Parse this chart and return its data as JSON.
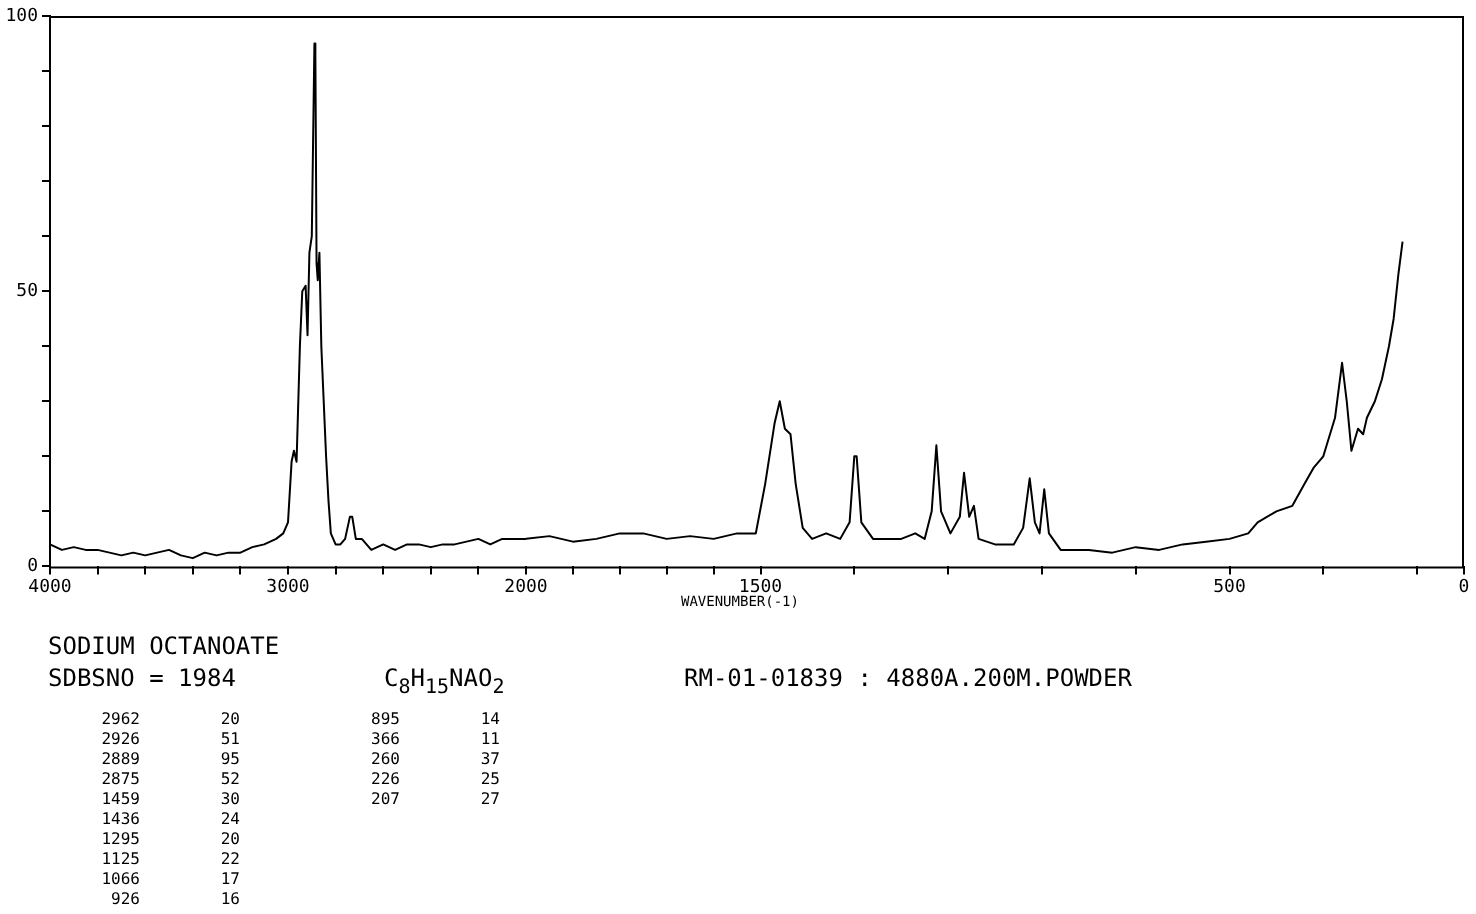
{
  "chart_data": [
    {
      "type": "line",
      "title": "SODIUM OCTANOATE",
      "annotations": [
        "SDBSNO = 1984",
        "C$_{8}$H$_{15}$NAO$_{2}$",
        "RM-01-01839 : 4880A.200M.POWDER",
        "2962 20",
        "2926 51",
        "2889 95",
        "2875 52",
        "1459 30",
        "1436 24",
        "1295 20",
        "1125 22",
        "1066 17",
        " 926 16",
        " 895 14",
        " 366 11",
        " 260 37",
        " 226 25",
        " 207 27"
      ],
      "xlim": [
        4000,
        2000
      ],
      "xticks": [
        4000,
        {
          "value": 3800,
          "label": null
        },
        {
          "value": 3600,
          "label": null
        },
        {
          "value": 3400,
          "label": null
        },
        {
          "value": 3200,
          "label": null
        },
        3000,
        {
          "value": 2800,
          "label": null
        },
        {
          "value": 2600,
          "label": null
        },
        {
          "value": 2400,
          "label": null
        },
        {
          "value": 2200,
          "label": null
        },
        2000
      ],
      "ylim": [
        0,
        100
      ],
      "yticks": [
        0,
        {
          "value": 10,
          "label": null
        },
        {
          "value": 20,
          "label": null
        },
        {
          "value": 30,
          "label": null
        },
        {
          "value": 40,
          "label": null
        },
        50,
        {
          "value": 60,
          "label": null
        },
        {
          "value": 70,
          "label": null
        },
        {
          "value": 80,
          "label": null
        },
        {
          "value": 90,
          "label": null
        },
        100
      ],
      "series": [
        {
          "color": "#000000",
          "x": [
            4000,
            3950,
            3900,
            3850,
            3800,
            3750,
            3700,
            3650,
            3600,
            3550,
            3500,
            3450,
            3400,
            3350,
            3300,
            3250,
            3200,
            3150,
            3100,
            3050,
            3020,
            3000,
            2985,
            2975,
            2964,
            2950,
            2940,
            2926,
            2918,
            2910,
            2900,
            2889,
            2885,
            2880,
            2875,
            2868,
            2860,
            2850,
            2840,
            2830,
            2820,
            2800,
            2780,
            2760,
            2740,
            2730,
            2715,
            2690,
            2650,
            2600,
            2550,
            2500,
            2450,
            2400,
            2350,
            2300,
            2250,
            2200,
            2150,
            2100,
            2050,
            2000
          ],
          "values": [
            4,
            3,
            3.5,
            3,
            3,
            2.5,
            2,
            2.5,
            2,
            2.5,
            3,
            2,
            1.5,
            2.5,
            2,
            2.5,
            2.5,
            3.5,
            4,
            5,
            6,
            8,
            19,
            21,
            19,
            40,
            50,
            51,
            42,
            57,
            60,
            95,
            93,
            55,
            52,
            57,
            40,
            30,
            20,
            12,
            6,
            4,
            4,
            5,
            9,
            9,
            5,
            5,
            3,
            4,
            3,
            4,
            4,
            3.5,
            4,
            4,
            4.5,
            5,
            4,
            5,
            5,
            5
          ]
        }
      ]
    },
    {
      "type": "line",
      "xlabel": "WAVENUMBER(-1)",
      "tick_labels": "x",
      "xlim": [
        2000,
        0
      ],
      "xticks": [
        {
          "value": 1900,
          "label": null
        },
        {
          "value": 1800,
          "label": null
        },
        {
          "value": 1700,
          "label": null
        },
        {
          "value": 1600,
          "label": null
        },
        1500,
        {
          "value": 1300,
          "label": null
        },
        {
          "value": 1100,
          "label": null
        },
        {
          "value": 900,
          "label": null
        },
        {
          "value": 700,
          "label": null
        },
        500,
        {
          "value": 300,
          "label": null
        },
        {
          "value": 100,
          "label": null
        },
        0
      ],
      "ylim": [
        0,
        100
      ],
      "series": [
        {
          "color": "#000000",
          "x": [
            2000,
            1950,
            1900,
            1850,
            1800,
            1750,
            1700,
            1650,
            1600,
            1550,
            1510,
            1490,
            1470,
            1459,
            1448,
            1436,
            1425,
            1410,
            1390,
            1360,
            1330,
            1310,
            1300,
            1295,
            1285,
            1260,
            1230,
            1200,
            1170,
            1150,
            1135,
            1125,
            1115,
            1095,
            1075,
            1066,
            1055,
            1045,
            1035,
            1000,
            960,
            940,
            926,
            915,
            905,
            895,
            885,
            860,
            800,
            750,
            700,
            650,
            600,
            550,
            500,
            460,
            440,
            400,
            366,
            340,
            320,
            300,
            275,
            260,
            250,
            240,
            226,
            215,
            207,
            190,
            175,
            160,
            150,
            140,
            131
          ],
          "values": [
            5,
            5.5,
            4.5,
            5,
            6,
            6,
            5,
            5.5,
            5,
            6,
            6,
            15,
            26,
            30,
            25,
            24,
            15,
            7,
            5,
            6,
            5,
            8,
            20,
            20,
            8,
            5,
            5,
            5,
            6,
            5,
            10,
            22,
            10,
            6,
            9,
            17,
            9,
            11,
            5,
            4,
            4,
            7,
            16,
            8,
            6,
            14,
            6,
            3,
            3,
            2.5,
            3.5,
            3,
            4,
            4.5,
            5,
            6,
            8,
            10,
            11,
            15,
            18,
            20,
            27,
            37,
            30,
            21,
            25,
            24,
            27,
            30,
            34,
            40,
            45,
            53,
            59
          ]
        }
      ]
    }
  ]
}
